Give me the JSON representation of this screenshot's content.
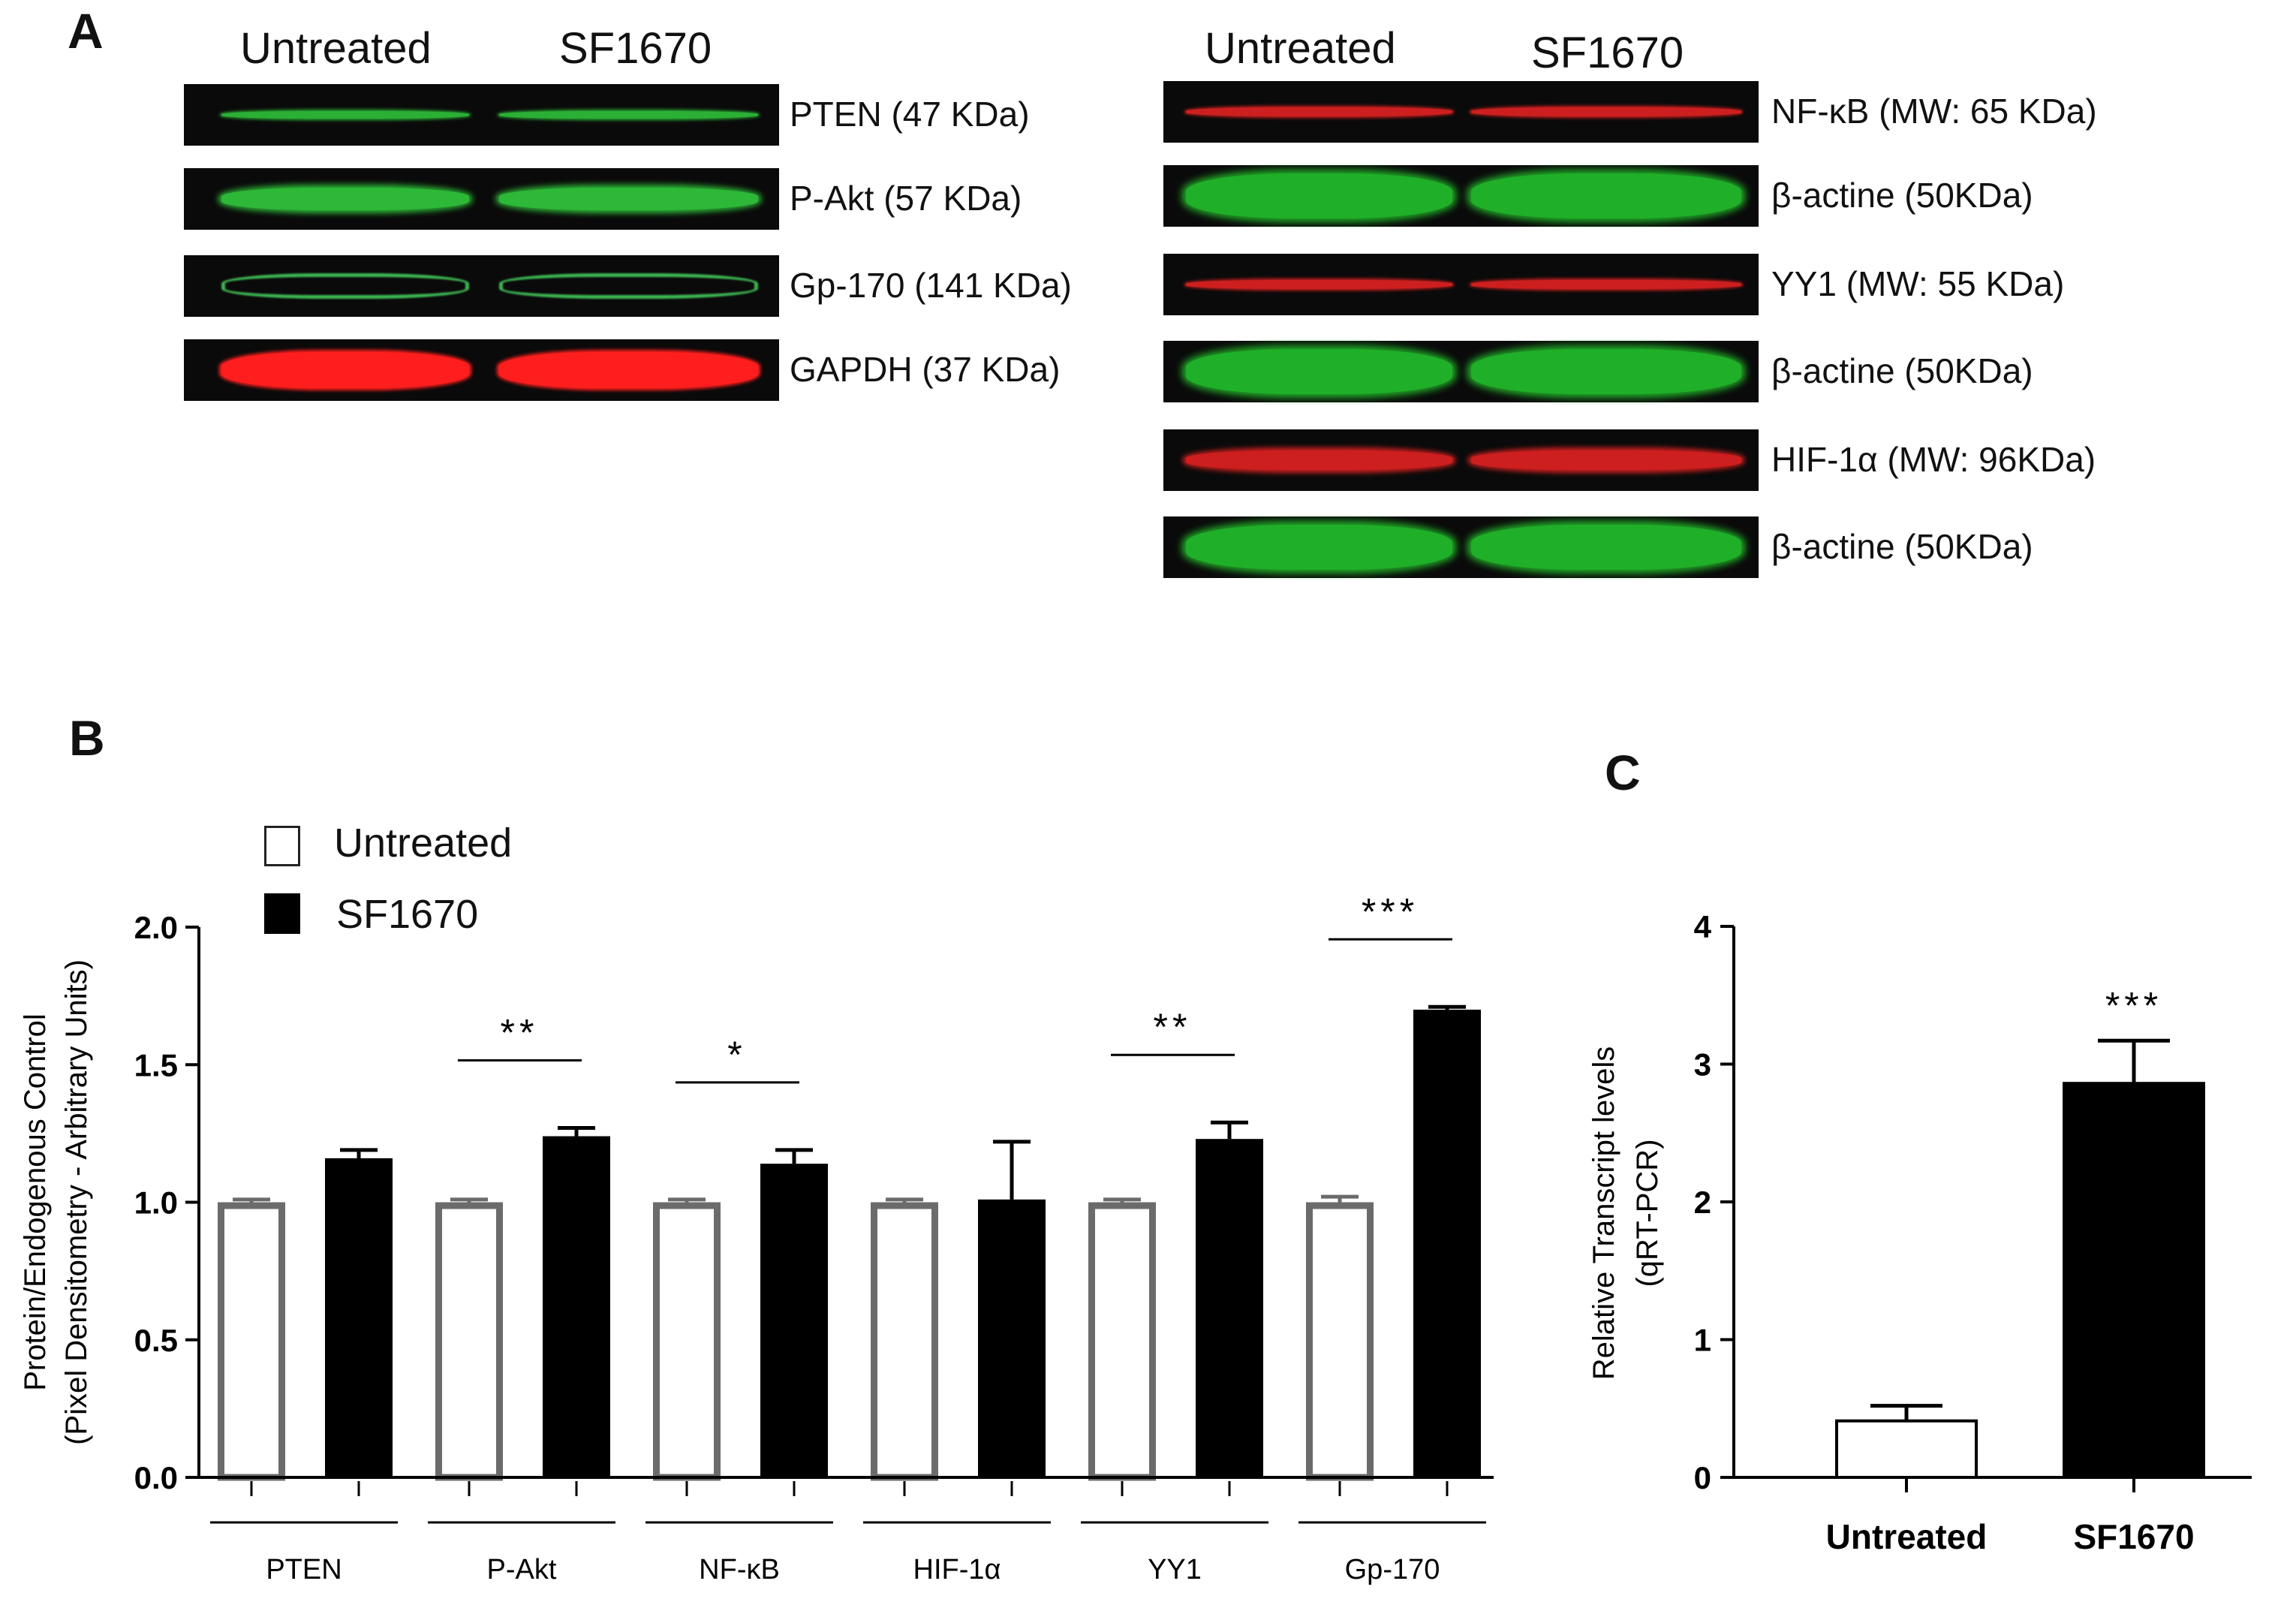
{
  "panel_a": {
    "letter": "A",
    "left_group": {
      "columns": [
        "Untreated",
        "SF1670"
      ],
      "rows": [
        {
          "label": "PTEN (47 KDa)",
          "color": "#2fc23a",
          "style": "thin"
        },
        {
          "label": "P-Akt (57 KDa)",
          "color": "#2fc23a",
          "style": "thick"
        },
        {
          "label": "Gp-170  (141 KDa)",
          "color": "#3fbf56",
          "style": "outline"
        },
        {
          "label": "GAPDH  (37 KDa)",
          "color": "#ff1e1e",
          "style": "solid"
        }
      ]
    },
    "right_group": {
      "columns": [
        "Untreated",
        "SF1670"
      ],
      "rows": [
        {
          "label": "NF-κB (MW: 65 KDa)",
          "color": "#e32222",
          "style": "thin-red"
        },
        {
          "label": "β-actine  (50KDa)",
          "color": "#22b82a",
          "style": "fill"
        },
        {
          "label": "YY1 (MW: 55 KDa)",
          "color": "#e32222",
          "style": "thin-red"
        },
        {
          "label": "β-actine  (50KDa)",
          "color": "#22b82a",
          "style": "fill"
        },
        {
          "label": "HIF-1α  (MW: 96KDa)",
          "color": "#e32222",
          "style": "mid-red"
        },
        {
          "label": "β-actine  (50KDa)",
          "color": "#22b82a",
          "style": "fill"
        }
      ]
    }
  },
  "panel_b": {
    "letter": "B",
    "legend": [
      "Untreated",
      "SF1670"
    ]
  },
  "panel_c": {
    "letter": "C"
  },
  "chart_data": [
    {
      "type": "bar",
      "panel": "B",
      "categories": [
        "PTEN",
        "P-Akt",
        "NF-κB",
        "HIF-1α",
        "YY1",
        "Gp-170"
      ],
      "series": [
        {
          "name": "Untreated",
          "values": [
            1.0,
            1.0,
            1.0,
            1.0,
            1.0,
            1.0
          ],
          "errors": [
            0.01,
            0.01,
            0.01,
            0.01,
            0.01,
            0.02
          ],
          "fill": "#ffffff",
          "stroke": "#6b6b6b"
        },
        {
          "name": "SF1670",
          "values": [
            1.16,
            1.24,
            1.14,
            1.01,
            1.23,
            1.7
          ],
          "errors": [
            0.03,
            0.03,
            0.05,
            0.21,
            0.06,
            0.01
          ],
          "fill": "#000000",
          "stroke": "#000000"
        }
      ],
      "significance": [
        "",
        "**",
        "*",
        "",
        "**",
        "***"
      ],
      "ylabel": "Protein/Endogenous Control\n(Pixel Densitometry - Arbitrary Units)",
      "xlabel": "",
      "ylim": [
        0,
        2.0
      ],
      "yticks": [
        "0.0",
        "0.5",
        "1.0",
        "1.5",
        "2.0"
      ],
      "legend_position": "top-left",
      "grid": false
    },
    {
      "type": "bar",
      "panel": "C",
      "categories": [
        "Untreated",
        "SF1670"
      ],
      "values": [
        0.41,
        2.86
      ],
      "errors": [
        0.11,
        0.31
      ],
      "fills": [
        "#ffffff",
        "#000000"
      ],
      "significance": [
        "",
        "***"
      ],
      "ylabel": "Relative Transcript levels\n(qRT-PCR)",
      "xlabel": "",
      "ylim": [
        0,
        4
      ],
      "yticks": [
        "0",
        "1",
        "2",
        "3",
        "4"
      ],
      "grid": false
    }
  ]
}
